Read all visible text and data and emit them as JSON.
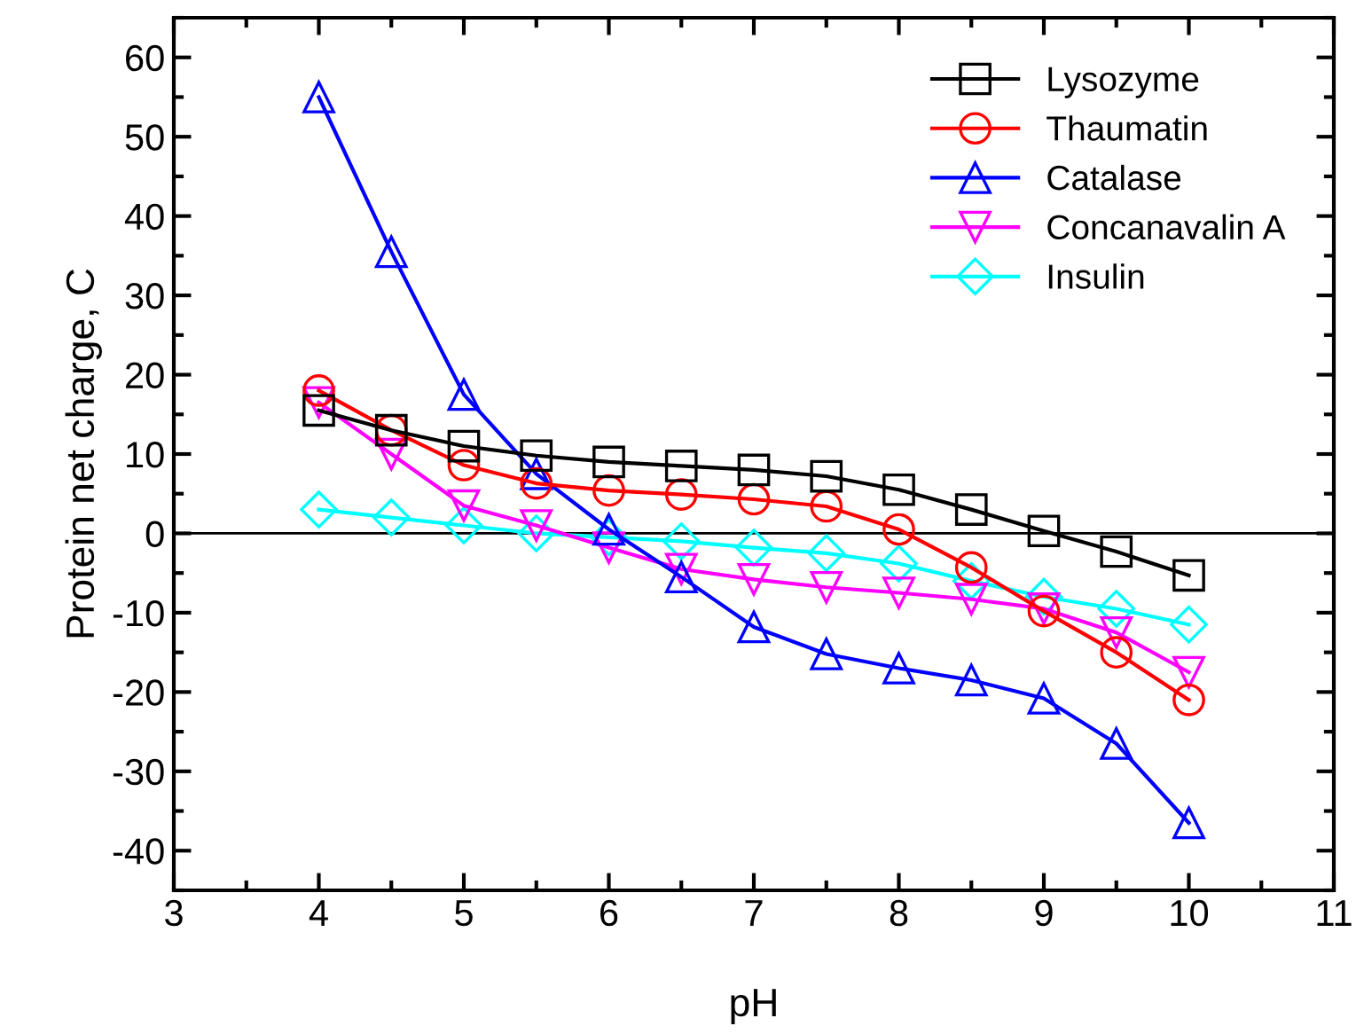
{
  "chart_data": {
    "type": "line",
    "xlabel": "pH",
    "ylabel": "Protein net charge, C",
    "x": [
      4,
      4.5,
      5,
      5.5,
      6,
      6.5,
      7,
      7.5,
      8,
      8.5,
      9,
      9.5,
      10
    ],
    "xlim": [
      3,
      11
    ],
    "xticks": [
      3,
      4,
      5,
      6,
      7,
      8,
      9,
      10,
      11
    ],
    "ylim": [
      -45,
      65
    ],
    "yticks": [
      -40,
      -30,
      -20,
      -10,
      0,
      10,
      20,
      30,
      40,
      50,
      60
    ],
    "ref_lines": [
      {
        "axis": "y",
        "value": 0,
        "color": "#000000"
      }
    ],
    "grid": false,
    "legend": "top right",
    "line_style": "solid",
    "series": [
      {
        "name": "Lysozyme",
        "color": "#000000",
        "marker": "square",
        "values": [
          15.5,
          13,
          11,
          9.8,
          9,
          8.5,
          8,
          7.2,
          5.5,
          3,
          0.3,
          -2.3,
          -5.3
        ]
      },
      {
        "name": "Thaumatin",
        "color": "#ff0000",
        "marker": "circle",
        "values": [
          18,
          13,
          8.6,
          6.3,
          5.4,
          4.9,
          4.3,
          3.4,
          0.5,
          -4.3,
          -9.8,
          -15,
          -21
        ]
      },
      {
        "name": "Catalase",
        "color": "#0000ff",
        "marker": "triangle",
        "values": [
          55,
          35.5,
          17.5,
          7.5,
          0.5,
          -5.5,
          -11.8,
          -15.2,
          -17,
          -18.5,
          -20.8,
          -26.5,
          -36.5
        ]
      },
      {
        "name": "Concanavalin A",
        "color": "#ff00ff",
        "marker": "triangle_down",
        "values": [
          16.5,
          10,
          3.5,
          1,
          -1.8,
          -4.5,
          -5.8,
          -6.8,
          -7.5,
          -8.3,
          -9.5,
          -12.5,
          -17.5
        ]
      },
      {
        "name": "Insulin",
        "color": "#00ffff",
        "marker": "diamond",
        "values": [
          3,
          2,
          1,
          0,
          -0.5,
          -1,
          -1.8,
          -2.5,
          -3.8,
          -6,
          -8,
          -9.5,
          -11.5
        ]
      }
    ]
  }
}
